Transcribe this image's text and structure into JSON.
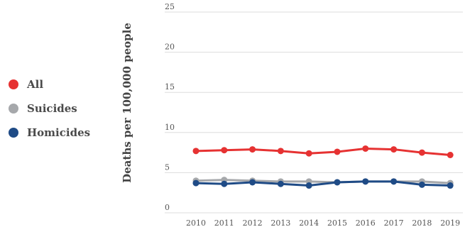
{
  "chart_data": {
    "type": "line",
    "title": "",
    "xlabel": "",
    "ylabel": "Deaths per 100,000 people",
    "x": [
      "2010",
      "2011",
      "2012",
      "2013",
      "2014",
      "2015",
      "2016",
      "2017",
      "2018",
      "2019"
    ],
    "yticks": [
      "0",
      "5",
      "10",
      "15",
      "20",
      "25"
    ],
    "ylim": [
      0,
      25
    ],
    "grid": true,
    "legend_position": "left",
    "series": [
      {
        "name": "All",
        "color": "#e63232",
        "values": [
          7.7,
          7.8,
          7.9,
          7.7,
          7.4,
          7.6,
          8.0,
          7.9,
          7.5,
          7.2
        ]
      },
      {
        "name": "Suicides",
        "color": "#a6a8ab",
        "values": [
          4.0,
          4.1,
          4.0,
          3.9,
          3.9,
          3.8,
          3.9,
          3.9,
          3.9,
          3.7
        ]
      },
      {
        "name": "Homicides",
        "color": "#1f4b86",
        "values": [
          3.7,
          3.6,
          3.8,
          3.6,
          3.4,
          3.8,
          3.9,
          3.9,
          3.5,
          3.4
        ]
      }
    ]
  }
}
